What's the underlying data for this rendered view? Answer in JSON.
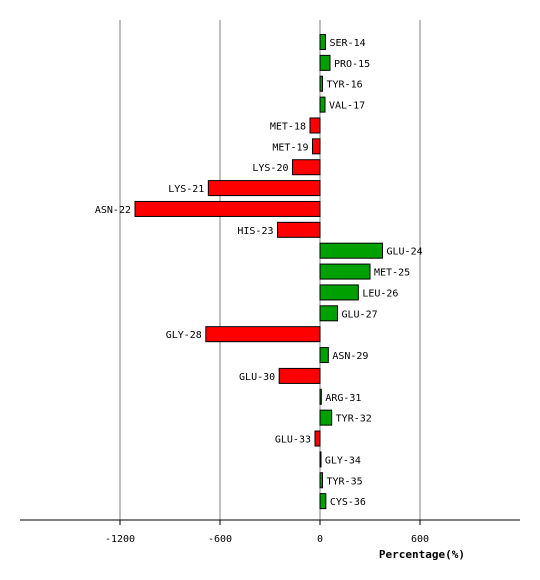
{
  "chart_data": {
    "type": "bar",
    "orientation": "horizontal",
    "title": "",
    "xlabel": "Percentage(%)",
    "ylabel": "",
    "xlim": [
      -1800,
      1200
    ],
    "xticks": [
      -1200,
      -600,
      0,
      600
    ],
    "xtick_labels": [
      "-1200",
      "-600",
      "0",
      "600"
    ],
    "grid": "vertical",
    "colors": {
      "positive": "#00a000",
      "negative": "#ff0000",
      "grid": "#808080",
      "axis": "#000000"
    },
    "categories": [
      "SER-14",
      "PRO-15",
      "TYR-16",
      "VAL-17",
      "MET-18",
      "MET-19",
      "LYS-20",
      "LYS-21",
      "ASN-22",
      "HIS-23",
      "GLU-24",
      "MET-25",
      "LEU-26",
      "GLU-27",
      "GLY-28",
      "ASN-29",
      "GLU-30",
      "ARG-31",
      "TYR-32",
      "GLU-33",
      "GLY-34",
      "TYR-35",
      "CYS-36"
    ],
    "values": [
      33,
      60,
      15,
      30,
      -60,
      -45,
      -165,
      -670,
      -1110,
      -255,
      375,
      300,
      230,
      105,
      -685,
      50,
      -245,
      8,
      70,
      -30,
      5,
      15,
      35
    ]
  }
}
